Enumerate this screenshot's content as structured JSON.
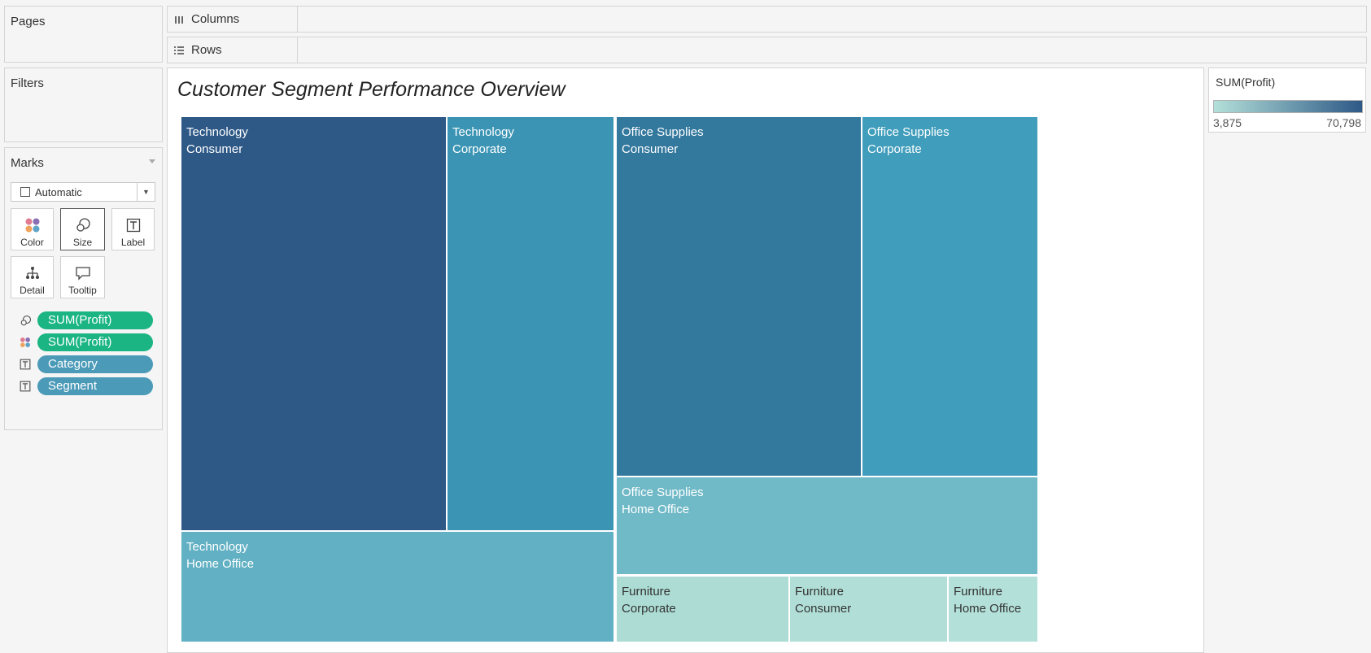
{
  "pages": {
    "title": "Pages"
  },
  "filters": {
    "title": "Filters"
  },
  "shelves": {
    "columns": "Columns",
    "rows": "Rows"
  },
  "marks": {
    "title": "Marks",
    "mark_type": "Automatic",
    "buttons": {
      "color": "Color",
      "size": "Size",
      "label": "Label",
      "detail": "Detail",
      "tooltip": "Tooltip"
    },
    "pills": [
      {
        "encoding": "size",
        "field": "SUM(Profit)"
      },
      {
        "encoding": "color",
        "field": "SUM(Profit)"
      },
      {
        "encoding": "label",
        "field": "Category"
      },
      {
        "encoding": "label",
        "field": "Segment"
      }
    ]
  },
  "view": {
    "title": "Customer Segment Performance Overview"
  },
  "legend": {
    "title": "SUM(Profit)",
    "min": "3,875",
    "max": "70,798",
    "color_low": "#b3e0d9",
    "color_high": "#2e5987"
  },
  "chart_data": {
    "type": "treemap",
    "title": "Customer Segment Performance Overview",
    "size_measure": "SUM(Profit)",
    "color_measure": "SUM(Profit)",
    "groups": [
      {
        "category": "Technology",
        "tiles": [
          {
            "category": "Technology",
            "segment": "Consumer",
            "color": "#2e5987"
          },
          {
            "category": "Technology",
            "segment": "Corporate",
            "color": "#3b94b4"
          },
          {
            "category": "Technology",
            "segment": "Home Office",
            "color": "#62b0c3"
          }
        ]
      },
      {
        "category": "Office Supplies",
        "tiles": [
          {
            "category": "Office Supplies",
            "segment": "Consumer",
            "color": "#33789d"
          },
          {
            "category": "Office Supplies",
            "segment": "Corporate",
            "color": "#409dbb"
          },
          {
            "category": "Office Supplies",
            "segment": "Home Office",
            "color": "#70b9c7"
          }
        ]
      },
      {
        "category": "Furniture",
        "tiles": [
          {
            "category": "Furniture",
            "segment": "Corporate",
            "color": "#acdcd4"
          },
          {
            "category": "Furniture",
            "segment": "Consumer",
            "color": "#b1dfd7"
          },
          {
            "category": "Furniture",
            "segment": "Home Office",
            "color": "#b3e0d9"
          }
        ]
      }
    ]
  }
}
